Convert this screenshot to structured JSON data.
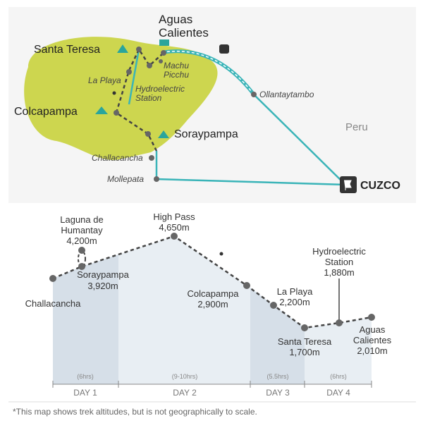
{
  "map": {
    "places": {
      "aguas_calientes": [
        "Aguas",
        "Calientes"
      ],
      "santa_teresa": "Santa Teresa",
      "la_playa": "La Playa",
      "machu_picchu": [
        "Machu",
        "Picchu"
      ],
      "hydroelectric": [
        "Hydroelectric",
        "Station"
      ],
      "ollantaytambo": "Ollantaytambo",
      "colcapampa": "Colcapampa",
      "soraypampa": "Soraypampa",
      "peru": "Peru",
      "challacancha": "Challacancha",
      "mollepata": "Mollepata",
      "cuzco": "CUZCO"
    }
  },
  "profile": {
    "points": [
      {
        "name": [
          "Challacancha"
        ]
      },
      {
        "name": [
          "Soraypampa"
        ],
        "altitude": "3,920m"
      },
      {
        "name": [
          "Laguna de",
          "Humantay"
        ],
        "altitude": "4,200m"
      },
      {
        "name": [
          "High Pass"
        ],
        "altitude": "4,650m"
      },
      {
        "name": [
          "Colcapampa"
        ],
        "altitude": "2,900m"
      },
      {
        "name": [
          "La Playa"
        ],
        "altitude": "2,200m"
      },
      {
        "name": [
          "Santa Teresa"
        ],
        "altitude": "1,700m"
      },
      {
        "name": [
          "Hydroelectric",
          "Station"
        ],
        "altitude": "1,880m"
      },
      {
        "name": [
          "Aguas",
          "Calientes"
        ],
        "altitude": "2,010m"
      }
    ],
    "days": [
      {
        "label": "DAY 1",
        "hours": "(6hrs)"
      },
      {
        "label": "DAY 2",
        "hours": "(9-10hrs)"
      },
      {
        "label": "DAY 3",
        "hours": "(5.5hrs)"
      },
      {
        "label": "DAY 4",
        "hours": "(6hrs)"
      }
    ]
  },
  "footnote": "*This map shows trek altitudes, but is not geographically to scale."
}
